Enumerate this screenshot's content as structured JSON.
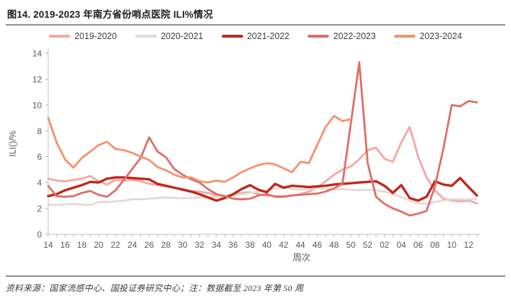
{
  "figure": {
    "title": "图14. 2019-2023 年南方省份哨点医院 ILI%情况",
    "source_note": "资料来源：国家流感中心、国投证券研究中心；注：数据截至 2023 年第 50 周"
  },
  "chart_data": {
    "type": "line",
    "title": "2019-2023 年南方省份哨点医院 ILI%情况",
    "xlabel": "周次",
    "ylabel": "ILI()/%",
    "ylim": [
      0,
      14
    ],
    "yticks": [
      0,
      2,
      4,
      6,
      8,
      10,
      12,
      14
    ],
    "grid": false,
    "legend_position": "top",
    "x": [
      "14",
      "15",
      "16",
      "17",
      "18",
      "19",
      "20",
      "21",
      "22",
      "23",
      "24",
      "25",
      "26",
      "27",
      "28",
      "29",
      "30",
      "31",
      "32",
      "33",
      "34",
      "35",
      "36",
      "37",
      "38",
      "39",
      "40",
      "41",
      "42",
      "43",
      "44",
      "45",
      "46",
      "47",
      "48",
      "49",
      "50",
      "51",
      "52",
      "01",
      "02",
      "03",
      "04",
      "05",
      "06",
      "07",
      "08",
      "09",
      "10",
      "11",
      "12",
      "13"
    ],
    "series": [
      {
        "name": "2019-2020",
        "color": "#F5A7A2",
        "values": [
          4.3,
          4.15,
          4.1,
          4.2,
          4.3,
          4.5,
          4.1,
          3.85,
          4.2,
          4.15,
          4.2,
          4.1,
          3.9,
          3.8,
          3.7,
          3.6,
          3.5,
          3.35,
          3.3,
          3.2,
          3.0,
          2.95,
          3.05,
          3.2,
          3.25,
          3.1,
          3.0,
          2.95,
          2.95,
          3.0,
          3.1,
          3.3,
          3.6,
          4.1,
          4.6,
          5.0,
          5.25,
          5.8,
          6.5,
          6.7,
          5.85,
          5.6,
          7.1,
          8.3,
          6.0,
          4.4,
          3.4,
          2.75,
          2.6,
          2.55,
          2.6,
          2.4
        ]
      },
      {
        "name": "2020-2021",
        "color": "#E3DAD6",
        "values": [
          2.3,
          2.25,
          2.3,
          2.35,
          2.3,
          2.25,
          2.5,
          2.5,
          2.55,
          2.6,
          2.7,
          2.7,
          2.75,
          2.8,
          2.85,
          2.8,
          2.8,
          2.8,
          2.85,
          2.85,
          2.9,
          2.9,
          3.0,
          3.1,
          3.2,
          3.3,
          3.35,
          3.55,
          3.6,
          3.5,
          3.45,
          3.5,
          3.55,
          3.5,
          3.45,
          3.5,
          3.45,
          3.4,
          3.45,
          3.4,
          3.3,
          3.1,
          2.9,
          2.6,
          2.4,
          2.35,
          2.5,
          2.6,
          2.7,
          2.7,
          2.7,
          2.75
        ]
      },
      {
        "name": "2021-2022",
        "color": "#C0271A",
        "values": [
          2.95,
          3.1,
          3.4,
          3.6,
          3.8,
          4.05,
          4.0,
          4.3,
          4.4,
          4.4,
          4.35,
          4.3,
          4.25,
          3.9,
          3.75,
          3.6,
          3.45,
          3.3,
          3.1,
          2.85,
          2.6,
          2.8,
          3.1,
          3.5,
          3.8,
          3.45,
          3.25,
          3.9,
          3.6,
          3.75,
          3.7,
          3.65,
          3.7,
          3.75,
          3.85,
          3.9,
          3.95,
          4.0,
          4.05,
          4.1,
          3.75,
          3.2,
          3.8,
          2.8,
          2.6,
          2.9,
          4.1,
          3.85,
          3.75,
          4.35,
          3.65,
          3.0
        ]
      },
      {
        "name": "2022-2023",
        "color": "#DE6D66",
        "values": [
          3.75,
          2.95,
          2.9,
          2.95,
          3.2,
          3.35,
          3.05,
          2.9,
          3.4,
          4.2,
          5.05,
          5.9,
          7.5,
          6.4,
          5.95,
          5.05,
          4.6,
          4.25,
          4.0,
          3.5,
          3.1,
          2.95,
          2.75,
          2.7,
          2.75,
          3.0,
          3.1,
          2.9,
          2.9,
          3.0,
          3.05,
          3.1,
          3.15,
          3.3,
          3.55,
          3.9,
          8.6,
          13.3,
          5.5,
          2.9,
          2.35,
          2.0,
          1.75,
          1.45,
          1.6,
          1.8,
          3.7,
          6.6,
          10.0,
          9.9,
          10.3,
          10.2
        ]
      },
      {
        "name": "2023-2024",
        "color": "#F4916C",
        "values": [
          9.0,
          7.1,
          5.8,
          5.15,
          5.9,
          6.4,
          6.9,
          7.15,
          6.6,
          6.5,
          6.3,
          6.0,
          5.75,
          5.2,
          4.95,
          4.6,
          4.4,
          4.4,
          4.1,
          4.0,
          4.15,
          4.05,
          4.4,
          4.8,
          5.1,
          5.35,
          5.5,
          5.4,
          5.1,
          4.8,
          5.6,
          5.5,
          6.9,
          8.3,
          9.15,
          8.75,
          8.9
        ]
      }
    ]
  }
}
